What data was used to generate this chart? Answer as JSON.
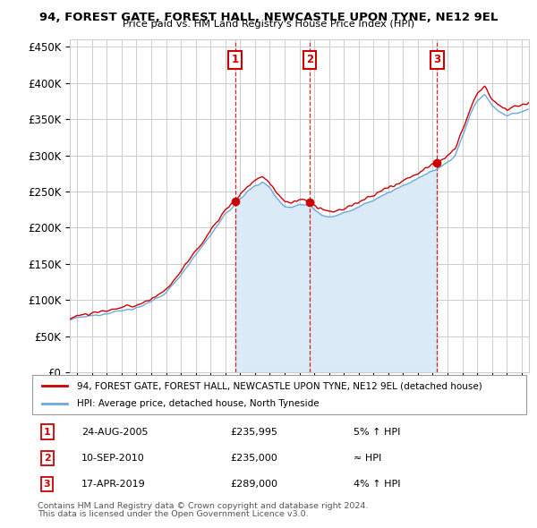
{
  "title": "94, FOREST GATE, FOREST HALL, NEWCASTLE UPON TYNE, NE12 9EL",
  "subtitle": "Price paid vs. HM Land Registry's House Price Index (HPI)",
  "legend_line1": "94, FOREST GATE, FOREST HALL, NEWCASTLE UPON TYNE, NE12 9EL (detached house)",
  "legend_line2": "HPI: Average price, detached house, North Tyneside",
  "footnote1": "Contains HM Land Registry data © Crown copyright and database right 2024.",
  "footnote2": "This data is licensed under the Open Government Licence v3.0.",
  "transactions": [
    {
      "num": 1,
      "date": "24-AUG-2005",
      "price": 235995,
      "price_str": "£235,995",
      "note": "5% ↑ HPI",
      "x": 2005.65
    },
    {
      "num": 2,
      "date": "10-SEP-2010",
      "price": 235000,
      "price_str": "£235,000",
      "note": "≈ HPI",
      "x": 2010.7
    },
    {
      "num": 3,
      "date": "17-APR-2019",
      "price": 289000,
      "price_str": "£289,000",
      "note": "4% ↑ HPI",
      "x": 2019.29
    }
  ],
  "hpi_color": "#6fa8dc",
  "hpi_fill_color": "#daeaf7",
  "price_color": "#cc0000",
  "dashed_color": "#cc0000",
  "ylim": [
    0,
    460000
  ],
  "yticks": [
    0,
    50000,
    100000,
    150000,
    200000,
    250000,
    300000,
    350000,
    400000,
    450000
  ],
  "xlim_start": 1994.5,
  "xlim_end": 2025.5
}
